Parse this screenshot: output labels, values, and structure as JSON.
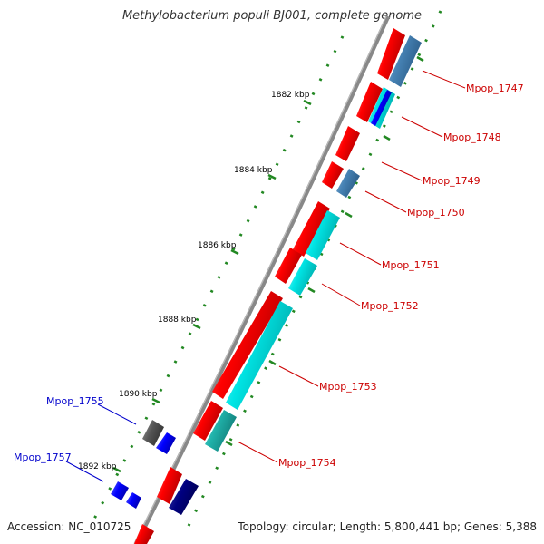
{
  "title": "Methylobacterium populi BJ001, complete genome",
  "accession": "Accession: NC_010725",
  "topology": "Topology: circular; Length: 5,800,441 bp; Genes: 5,388",
  "scale_labels": [
    "1882 kbp",
    "1884 kbp",
    "1886 kbp",
    "1888 kbp",
    "1890 kbp",
    "1892 kbp"
  ],
  "genes_right": [
    "Mpop_1747",
    "Mpop_1748",
    "Mpop_1749",
    "Mpop_1750",
    "Mpop_1751",
    "Mpop_1752",
    "Mpop_1753",
    "Mpop_1754"
  ],
  "genes_left": [
    "Mpop_1755",
    "Mpop_1757"
  ],
  "colors": {
    "label_right": "#cc0000",
    "label_left": "#0000cc",
    "backbone": "#888888",
    "tick": "#228822",
    "cds": "#ff0000",
    "protein_light": "#00e5e5",
    "protein_steel": "#4682b4",
    "protein_blue": "#0000ff",
    "protein_navy": "#000080",
    "protein_gray": "#555555"
  }
}
